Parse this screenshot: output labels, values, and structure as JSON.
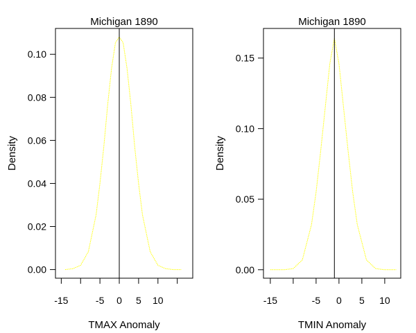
{
  "chart_data": [
    {
      "type": "line",
      "title": "Michigan 1890",
      "xlabel": "TMAX Anomaly",
      "ylabel": "Density",
      "xlim": [
        -16.5,
        19
      ],
      "ylim": [
        -0.004,
        0.112
      ],
      "x_ticks": [
        -15,
        -10,
        -5,
        0,
        5,
        10,
        15
      ],
      "x_tick_labels": [
        "-15",
        "",
        "-5",
        "0",
        "5",
        "10",
        ""
      ],
      "y_ticks": [
        0.0,
        0.02,
        0.04,
        0.06,
        0.08,
        0.1
      ],
      "y_tick_labels": [
        "0.00",
        "0.02",
        "0.04",
        "0.06",
        "0.08",
        "0.10"
      ],
      "vline_x": 0,
      "series": [
        {
          "color": "#ffff00",
          "x": [
            -14,
            -12,
            -10,
            -8,
            -6,
            -5,
            -4,
            -3,
            -2,
            -1,
            0,
            1,
            2,
            3,
            4,
            5,
            6,
            8,
            10,
            12,
            14,
            16
          ],
          "values": [
            0.0,
            0.0004,
            0.002,
            0.0083,
            0.0254,
            0.0399,
            0.057,
            0.0766,
            0.0935,
            0.1054,
            0.108,
            0.1054,
            0.0935,
            0.0766,
            0.057,
            0.0399,
            0.0254,
            0.0083,
            0.002,
            0.0004,
            0.0,
            0.0
          ]
        }
      ],
      "grid": false
    },
    {
      "type": "line",
      "title": "Michigan 1890",
      "xlabel": "TMIN Anomaly",
      "ylabel": "Density",
      "xlim": [
        -16.5,
        13.5
      ],
      "ylim": [
        -0.006,
        0.171
      ],
      "x_ticks": [
        -15,
        -10,
        -5,
        0,
        5,
        10
      ],
      "x_tick_labels": [
        "-15",
        "",
        "-5",
        "0",
        "5",
        "10"
      ],
      "y_ticks": [
        0.0,
        0.05,
        0.1,
        0.15
      ],
      "y_tick_labels": [
        "0.00",
        "0.05",
        "0.10",
        "0.15"
      ],
      "vline_x": -1,
      "series": [
        {
          "color": "#ffff00",
          "x": [
            -15,
            -12,
            -10,
            -8,
            -6,
            -5,
            -4,
            -3,
            -2,
            -1,
            0,
            1,
            2,
            3,
            4,
            6,
            8,
            10,
            12.5
          ],
          "values": [
            0.0,
            0.0,
            0.0008,
            0.007,
            0.032,
            0.055,
            0.084,
            0.115,
            0.146,
            0.164,
            0.146,
            0.115,
            0.084,
            0.055,
            0.032,
            0.007,
            0.0008,
            0.0,
            0.0
          ]
        }
      ],
      "grid": false
    }
  ]
}
